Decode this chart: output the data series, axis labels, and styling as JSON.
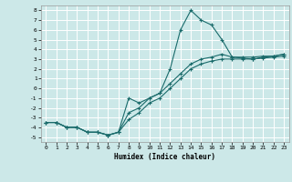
{
  "title": "",
  "xlabel": "Humidex (Indice chaleur)",
  "bg_color": "#cce8e8",
  "grid_color": "#ffffff",
  "line_color": "#1a6b6b",
  "xlim": [
    -0.5,
    23.5
  ],
  "ylim": [
    -5.5,
    8.5
  ],
  "xticks": [
    0,
    1,
    2,
    3,
    4,
    5,
    6,
    7,
    8,
    9,
    10,
    11,
    12,
    13,
    14,
    15,
    16,
    17,
    18,
    19,
    20,
    21,
    22,
    23
  ],
  "yticks": [
    -5,
    -4,
    -3,
    -2,
    -1,
    0,
    1,
    2,
    3,
    4,
    5,
    6,
    7,
    8
  ],
  "line1_x": [
    0,
    1,
    2,
    3,
    4,
    5,
    6,
    7,
    8,
    9,
    10,
    11,
    12,
    13,
    14,
    15,
    16,
    17,
    18,
    19,
    20,
    21,
    22,
    23
  ],
  "line1_y": [
    -3.5,
    -3.5,
    -4,
    -4.0,
    -4.5,
    -4.5,
    -4.8,
    -4.5,
    -1.0,
    -1.5,
    -1.0,
    -0.5,
    2.0,
    6.0,
    8.0,
    7.0,
    6.5,
    5.0,
    3.2,
    3.2,
    3.2,
    3.3,
    3.3,
    3.5
  ],
  "line2_x": [
    0,
    1,
    2,
    3,
    4,
    5,
    6,
    7,
    8,
    9,
    10,
    11,
    12,
    13,
    14,
    15,
    16,
    17,
    18,
    19,
    20,
    21,
    22,
    23
  ],
  "line2_y": [
    -3.5,
    -3.5,
    -4,
    -4.0,
    -4.5,
    -4.5,
    -4.8,
    -4.5,
    -2.5,
    -2.0,
    -1.0,
    -0.5,
    0.5,
    1.5,
    2.5,
    3.0,
    3.2,
    3.5,
    3.2,
    3.1,
    3.0,
    3.2,
    3.3,
    3.5
  ],
  "line3_x": [
    0,
    1,
    2,
    3,
    4,
    5,
    6,
    7,
    8,
    9,
    10,
    11,
    12,
    13,
    14,
    15,
    16,
    17,
    18,
    19,
    20,
    21,
    22,
    23
  ],
  "line3_y": [
    -3.5,
    -3.5,
    -4,
    -4.0,
    -4.5,
    -4.5,
    -4.8,
    -4.5,
    -3.2,
    -2.5,
    -1.5,
    -1.0,
    0.0,
    1.0,
    2.0,
    2.5,
    2.8,
    3.0,
    3.0,
    3.0,
    3.0,
    3.1,
    3.2,
    3.3
  ]
}
